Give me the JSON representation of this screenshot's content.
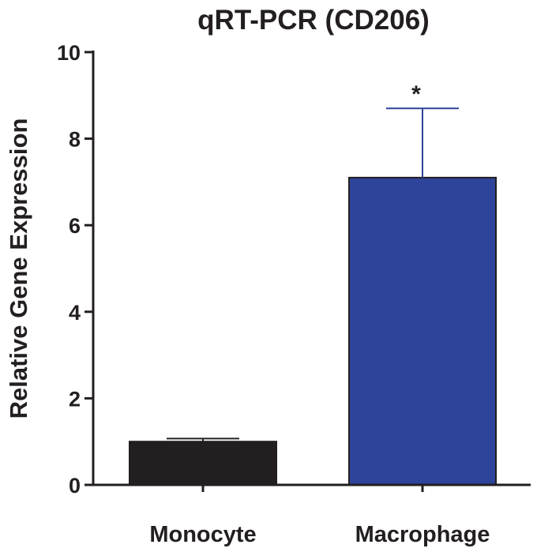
{
  "chart_data": {
    "type": "bar",
    "title": "qRT-PCR (CD206)",
    "xlabel": "",
    "ylabel": "Relative Gene Expression",
    "categories": [
      "Monocyte",
      "Macrophage"
    ],
    "values": [
      1.0,
      7.1
    ],
    "error": [
      0.07,
      1.6
    ],
    "ylim": [
      0,
      10
    ],
    "yticks": [
      0,
      2,
      4,
      6,
      8,
      10
    ],
    "bar_colors": [
      "#231f20",
      "#2e439a"
    ],
    "annotations": [
      {
        "category": "Macrophage",
        "text": "*"
      }
    ],
    "grid": false,
    "legend": "none"
  }
}
